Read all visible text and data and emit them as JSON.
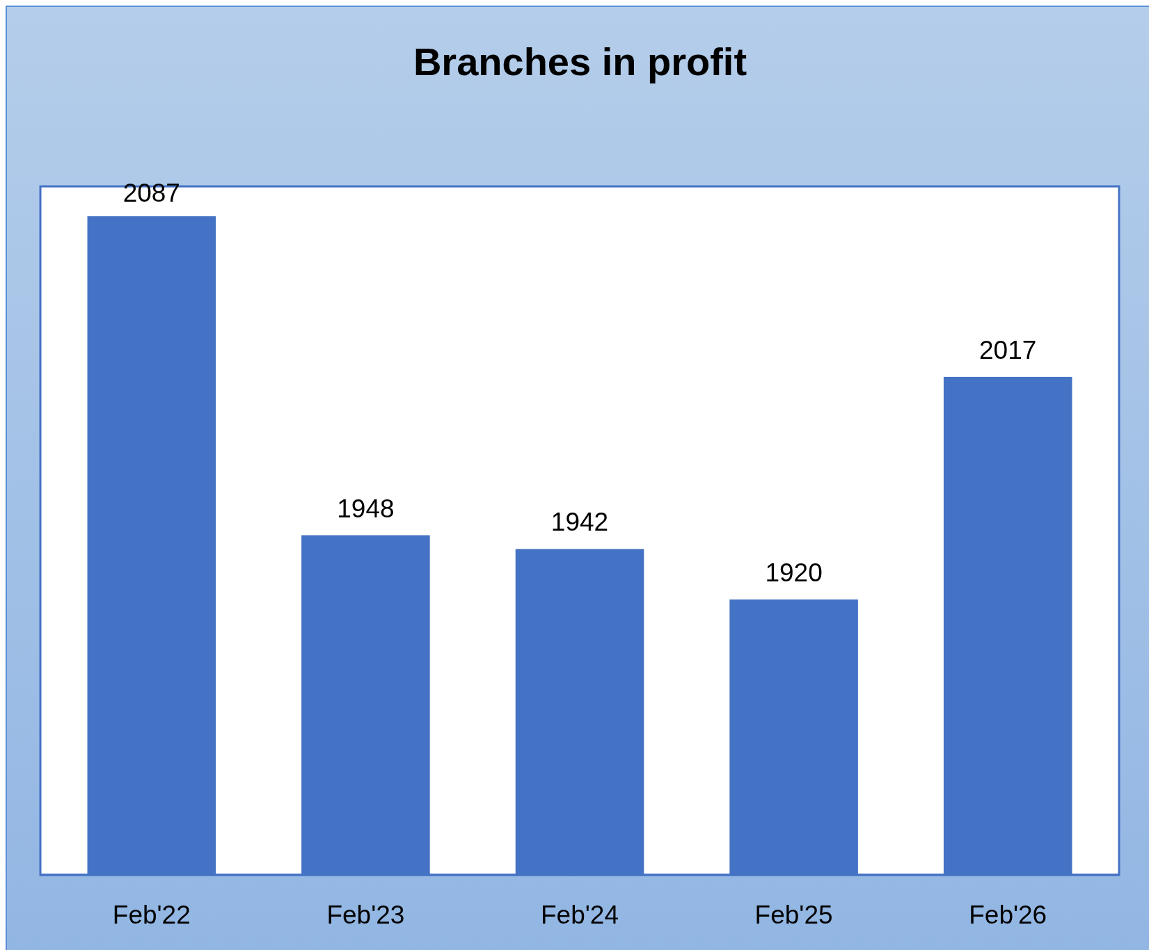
{
  "chart_data": {
    "type": "bar",
    "title": "Branches in profit",
    "categories": [
      "Feb'22",
      "Feb'23",
      "Feb'24",
      "Feb'25",
      "Feb'26"
    ],
    "values": [
      2087,
      1948,
      1942,
      1920,
      2017
    ],
    "color": "#4472c4",
    "ylim": [
      1800,
      2100
    ],
    "data_labels": true,
    "tick_labels": "x"
  }
}
